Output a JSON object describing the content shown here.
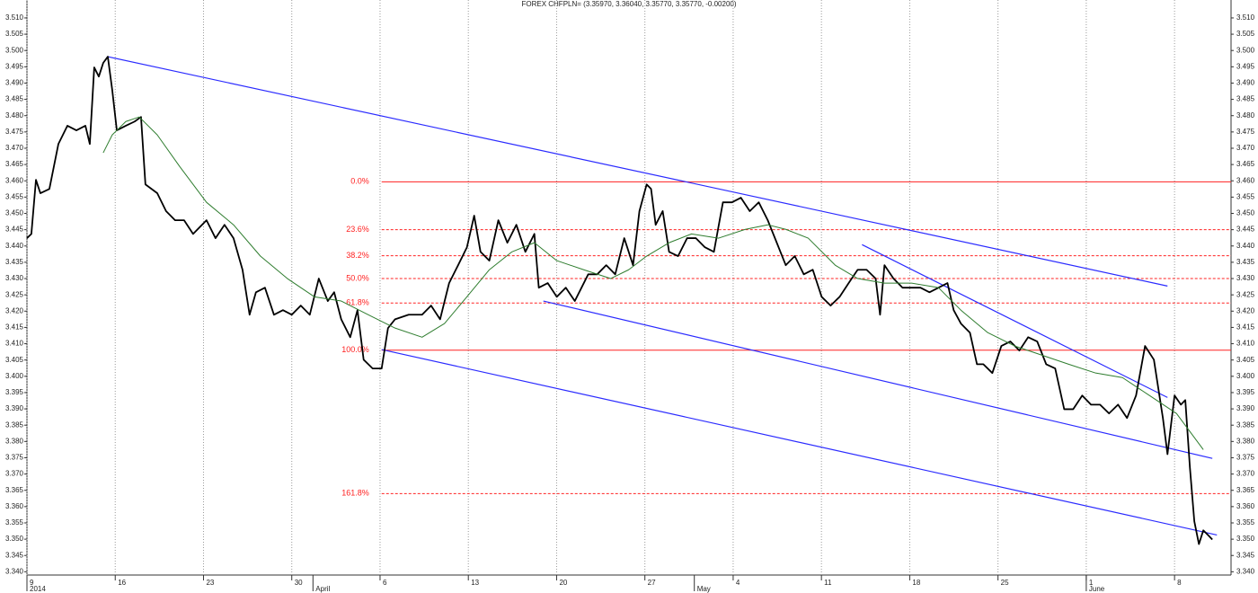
{
  "chart_data": {
    "type": "line",
    "title": "FOREX CHFPLN= (3.35970, 3.36040, 3.35770, 3.35770, -0.00200)",
    "xlim": [
      0,
      68.2
    ],
    "ylim": [
      3.339,
      3.5155
    ],
    "xticks": [
      {
        "value": 0,
        "label": "9"
      },
      {
        "value": 5,
        "label": "16"
      },
      {
        "value": 10,
        "label": "23"
      },
      {
        "value": 15,
        "label": "30"
      },
      {
        "value": 20,
        "label": "6"
      },
      {
        "value": 25,
        "label": "13"
      },
      {
        "value": 30,
        "label": "20"
      },
      {
        "value": 35,
        "label": "27"
      },
      {
        "value": 40,
        "label": "4"
      },
      {
        "value": 45,
        "label": "11"
      },
      {
        "value": 50,
        "label": "18"
      },
      {
        "value": 55,
        "label": "25"
      },
      {
        "value": 60,
        "label": "1"
      },
      {
        "value": 65,
        "label": "8"
      }
    ],
    "month_ticks": [
      {
        "value": 0,
        "label": "2014"
      },
      {
        "value": 16.2,
        "label": "April"
      },
      {
        "value": 37.8,
        "label": "May"
      },
      {
        "value": 60,
        "label": "June"
      }
    ],
    "yticks": [
      {
        "value": 3.34,
        "label": "3.340"
      },
      3.345,
      {
        "value": 3.35,
        "label": "3.350"
      },
      3.355,
      {
        "value": 3.36,
        "label": "3.360"
      },
      3.365,
      {
        "value": 3.37,
        "label": "3.370"
      },
      3.375,
      {
        "value": 3.38,
        "label": "3.380"
      },
      3.385,
      {
        "value": 3.39,
        "label": "3.390"
      },
      3.395,
      {
        "value": 3.4,
        "label": "3.400"
      },
      3.405,
      {
        "value": 3.41,
        "label": "3.410"
      },
      3.415,
      {
        "value": 3.42,
        "label": "3.420"
      },
      3.425,
      {
        "value": 3.43,
        "label": "3.430"
      },
      3.435,
      {
        "value": 3.44,
        "label": "3.440"
      },
      3.445,
      {
        "value": 3.45,
        "label": "3.450"
      },
      3.455,
      {
        "value": 3.46,
        "label": "3.460"
      },
      3.465,
      {
        "value": 3.47,
        "label": "3.470"
      },
      3.475,
      {
        "value": 3.48,
        "label": "3.480"
      },
      3.485,
      {
        "value": 3.49,
        "label": "3.490"
      },
      3.495,
      {
        "value": 3.5,
        "label": "3.500"
      },
      3.505,
      {
        "value": 3.51,
        "label": "3.510"
      }
    ],
    "grid": true,
    "series": [
      {
        "color": "#000000",
        "x": [
          0,
          0.25,
          0.51,
          0.76,
          1.27,
          1.78,
          2.29,
          2.8,
          3.31,
          3.56,
          3.81,
          4.07,
          4.32,
          4.58,
          4.83,
          5.09,
          5.6,
          6.1,
          6.46,
          6.71,
          7.38,
          7.88,
          8.39,
          8.9,
          9.41,
          10.17,
          10.68,
          11.19,
          11.7,
          12.21,
          12.61,
          12.97,
          13.48,
          13.99,
          14.5,
          15,
          15.51,
          16.02,
          16.53,
          17.04,
          17.4,
          17.8,
          18.31,
          18.72,
          19.07,
          19.58,
          20.09,
          20.45,
          20.85,
          21.62,
          22.38,
          22.89,
          23.4,
          23.91,
          24.42,
          24.92,
          25.33,
          25.69,
          26.19,
          26.7,
          27.21,
          27.72,
          28.23,
          28.74,
          28.99,
          29.5,
          30.01,
          30.52,
          31.03,
          31.79,
          32.3,
          32.81,
          33.32,
          33.83,
          34.33,
          34.69,
          35.1,
          35.35,
          35.61,
          36.01,
          36.37,
          36.88,
          37.39,
          37.89,
          38.4,
          38.91,
          39.42,
          39.93,
          40.44,
          40.94,
          41.45,
          41.96,
          42.47,
          42.98,
          43.49,
          44,
          44.51,
          45.01,
          45.52,
          46.03,
          46.54,
          47.05,
          47.56,
          48.07,
          48.32,
          48.57,
          49.08,
          49.59,
          50.1,
          50.61,
          51.12,
          51.63,
          52.14,
          52.49,
          52.9,
          53.41,
          53.81,
          54.17,
          54.68,
          55.19,
          55.7,
          56.21,
          56.71,
          57.22,
          57.73,
          58.24,
          58.75,
          59.26,
          59.77,
          60.27,
          60.78,
          61.29,
          61.8,
          62.31,
          62.82,
          63.33,
          63.83,
          64.34,
          64.6,
          65,
          65.36,
          65.61,
          65.87,
          66.12,
          66.38,
          66.63,
          66.89,
          67.14
        ],
        "values": [
          3.4424,
          3.4437,
          3.4603,
          3.4562,
          3.4575,
          3.4713,
          3.4769,
          3.4755,
          3.4769,
          3.4713,
          3.4948,
          3.492,
          3.4962,
          3.4981,
          3.4879,
          3.4755,
          3.4769,
          3.4782,
          3.4796,
          3.4589,
          3.4562,
          3.4507,
          3.4479,
          3.4479,
          3.4437,
          3.4479,
          3.4424,
          3.4465,
          3.4424,
          3.4327,
          3.4189,
          3.4258,
          3.4272,
          3.4189,
          3.4203,
          3.4189,
          3.4217,
          3.4189,
          3.43,
          3.4231,
          3.4258,
          3.4175,
          3.412,
          3.4203,
          3.4051,
          3.4024,
          3.4024,
          3.4148,
          3.4175,
          3.4189,
          3.4189,
          3.4217,
          3.4175,
          3.4286,
          3.4341,
          3.4396,
          3.4493,
          3.4382,
          3.4355,
          3.4479,
          3.441,
          3.4465,
          3.4382,
          3.4437,
          3.4272,
          3.4286,
          3.4244,
          3.4272,
          3.4231,
          3.4313,
          3.4313,
          3.4341,
          3.4313,
          3.4424,
          3.4341,
          3.4507,
          3.4589,
          3.4575,
          3.4465,
          3.4507,
          3.4382,
          3.4369,
          3.4424,
          3.4424,
          3.4396,
          3.4382,
          3.4534,
          3.4534,
          3.4548,
          3.4507,
          3.4534,
          3.4479,
          3.441,
          3.4341,
          3.4369,
          3.4313,
          3.4327,
          3.4244,
          3.4217,
          3.4244,
          3.4286,
          3.4327,
          3.4327,
          3.43,
          3.4189,
          3.4341,
          3.43,
          3.4272,
          3.4272,
          3.4272,
          3.4258,
          3.4272,
          3.4286,
          3.4203,
          3.4162,
          3.4134,
          3.4037,
          3.4037,
          3.401,
          3.4093,
          3.4107,
          3.4079,
          3.412,
          3.4107,
          3.4037,
          3.4024,
          3.3899,
          3.3899,
          3.3941,
          3.3913,
          3.3913,
          3.3886,
          3.3913,
          3.3872,
          3.3941,
          3.4093,
          3.4051,
          3.3872,
          3.3761,
          3.3941,
          3.3913,
          3.3927,
          3.372,
          3.3555,
          3.3485,
          3.3527,
          3.3513,
          3.3499
        ]
      },
      {
        "color": "#2f7d2f",
        "x": [
          4.32,
          4.83,
          5.6,
          6.36,
          7.38,
          8.65,
          10.17,
          11.7,
          13.22,
          14.75,
          16.28,
          17.8,
          19.33,
          20.85,
          22.38,
          23.65,
          24.92,
          26.19,
          27.47,
          28.74,
          30.01,
          31.54,
          33.06,
          34.08,
          35.1,
          36.37,
          37.64,
          39.17,
          40.69,
          41.96,
          42.98,
          44.25,
          45.78,
          47.05,
          48.57,
          50.1,
          51.63,
          52.9,
          54.42,
          55.95,
          57.48,
          59,
          60.53,
          62.05,
          63.58,
          65.11,
          66.63
        ],
        "values": [
          3.4686,
          3.4741,
          3.4782,
          3.4796,
          3.4741,
          3.4644,
          3.4534,
          3.4465,
          3.4369,
          3.43,
          3.4244,
          3.4231,
          3.4189,
          3.4148,
          3.412,
          3.4162,
          3.4244,
          3.4327,
          3.4382,
          3.441,
          3.4355,
          3.4327,
          3.43,
          3.4327,
          3.4369,
          3.441,
          3.4437,
          3.4424,
          3.4451,
          3.4465,
          3.4451,
          3.4424,
          3.4341,
          3.43,
          3.4286,
          3.4286,
          3.4272,
          3.4203,
          3.4134,
          3.4093,
          3.4065,
          3.4037,
          3.401,
          3.3996,
          3.3941,
          3.3886,
          3.3775
        ]
      }
    ],
    "trendline_color": "#2b2bff",
    "trendlines": [
      {
        "x": [
          4.58,
          64.6
        ],
        "values": [
          3.4981,
          3.4277
        ]
      },
      {
        "x": [
          20.09,
          67.4
        ],
        "values": [
          3.4082,
          3.3513
        ]
      },
      {
        "x": [
          29.25,
          67.14
        ],
        "values": [
          3.4231,
          3.3748
        ]
      },
      {
        "x": [
          47.3,
          64.6
        ],
        "values": [
          3.4404,
          3.3935
        ]
      }
    ],
    "fib_color": "#ff2020",
    "fib_start_x": 20.09,
    "fib_levels": [
      {
        "label": "0.0%",
        "value": 3.4597,
        "style": "solid"
      },
      {
        "label": "23.6%",
        "value": 3.445,
        "style": "dashed"
      },
      {
        "label": "38.2%",
        "value": 3.437,
        "style": "dashed"
      },
      {
        "label": "50.0%",
        "value": 3.43,
        "style": "dashed"
      },
      {
        "label": "61.8%",
        "value": 3.4225,
        "style": "dashed"
      },
      {
        "label": "100.0%",
        "value": 3.408,
        "style": "solid"
      },
      {
        "label": "161.8%",
        "value": 3.364,
        "style": "dashed"
      }
    ]
  }
}
